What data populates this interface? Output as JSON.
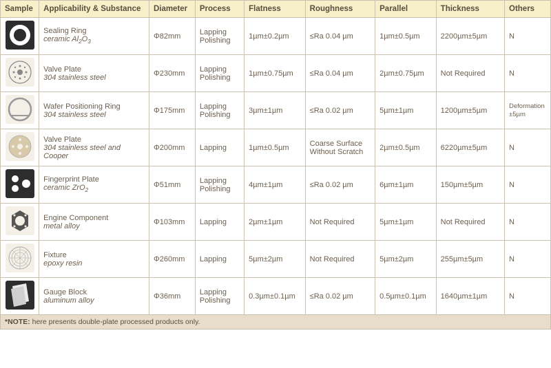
{
  "headers": {
    "sample": "Sample",
    "applicability": "Applicability & Substance",
    "diameter": "Diameter",
    "process": "Process",
    "flatness": "Flatness",
    "roughness": "Roughness",
    "parallel": "Parallel",
    "thickness": "Thickness",
    "others": "Others"
  },
  "colors": {
    "header_bg": "#f6efc8",
    "cell_bg": "#ffffff",
    "border": "#c9c0af",
    "note_bg": "#e7ddc9",
    "text": "#6b5f4f",
    "icon_bg_light": "#f4f0e7",
    "icon_bg_dark": "#2d2d2d"
  },
  "rows": [
    {
      "name": "Sealing Ring",
      "material": "ceramic Al₂O₃",
      "material_html": "ceramic Al<sub>2</sub>O<sub>3</sub>",
      "diameter": "Φ82mm",
      "process": "Lapping Polishing",
      "flatness": "1µm±0.2µm",
      "roughness": "≤Ra 0.04 µm",
      "parallel": "1µm±0.5µm",
      "thickness": "2200µm±5µm",
      "others": "N",
      "icon": "ring-white"
    },
    {
      "name": "Valve Plate",
      "material": "304 stainless steel",
      "diameter": "Φ230mm",
      "process": "Lapping Polishing",
      "flatness": "1µm±0.75µm",
      "roughness": "≤Ra 0.04 µm",
      "parallel": "2µm±0.75µm",
      "thickness": "Not Required",
      "others": "N",
      "icon": "valve-plate"
    },
    {
      "name": "Wafer Positioning Ring",
      "material": "304 stainless steel",
      "diameter": "Φ175mm",
      "process": "Lapping Polishing",
      "flatness": "3µm±1µm",
      "roughness": "≤Ra 0.02 µm",
      "parallel": "5µm±1µm",
      "thickness": "1200µm±5µm",
      "others": "Deformation ±5µm",
      "others_small": true,
      "icon": "wafer-ring"
    },
    {
      "name": "Valve Plate",
      "material": "304 stainless steel and Cooper",
      "diameter": "Φ200mm",
      "process": "Lapping",
      "flatness": "1µm±0.5µm",
      "roughness": "Coarse Surface Without Scratch",
      "parallel": "2µm±0.5µm",
      "thickness": "6220µm±5µm",
      "others": "N",
      "icon": "valve-cooper"
    },
    {
      "name": "Fingerprint Plate",
      "material": "ceramic ZrO₂",
      "material_html": "ceramic ZrO<sub>2</sub>",
      "diameter": "Φ51mm",
      "process": "Lapping Polishing",
      "flatness": "4µm±1µm",
      "roughness": "≤Ra 0.02 µm",
      "parallel": "6µm±1µm",
      "thickness": "150µm±5µm",
      "others": "N",
      "icon": "fingerprint"
    },
    {
      "name": "Engine Component",
      "material": "metal alloy",
      "diameter": "Φ103mm",
      "process": "Lapping",
      "flatness": "2µm±1µm",
      "roughness": "Not Required",
      "parallel": "5µm±1µm",
      "thickness": "Not Required",
      "others": "N",
      "icon": "engine-comp"
    },
    {
      "name": "Fixture",
      "material": "epoxy resin",
      "diameter": "Φ260mm",
      "process": "Lapping",
      "flatness": "5µm±2µm",
      "roughness": "Not Required",
      "parallel": "5µm±2µm",
      "thickness": "255µm±5µm",
      "others": "N",
      "icon": "fixture"
    },
    {
      "name": "Gauge Block",
      "material": "aluminum alloy",
      "diameter": "Φ36mm",
      "process": "Lapping Polishing",
      "flatness": "0.3µm±0.1µm",
      "roughness": "≤Ra 0.02 µm",
      "parallel": "0.5µm±0.1µm",
      "thickness": "1640µm±1µm",
      "others": "N",
      "icon": "gauge-block"
    }
  ],
  "note_label": "*NOTE:",
  "note_text": " here presents double-plate processed products only.",
  "icon_svgs": {
    "ring-white": "<svg viewBox='0 0 42 42'><rect width='42' height='42' fill='#2d2d2d' rx='3'/><circle cx='21' cy='21' r='15' fill='#fff'/><circle cx='21' cy='21' r='9' fill='#2d2d2d'/></svg>",
    "valve-plate": "<svg viewBox='0 0 42 42'><rect width='42' height='42' fill='#f4f0e7' rx='3'/><circle cx='21' cy='21' r='16' fill='none' stroke='#888' stroke-width='1.2'/><circle cx='21' cy='21' r='4' fill='#888'/><circle cx='12' cy='21' r='1.5' fill='#888'/><circle cx='30' cy='21' r='1.5' fill='#888'/><circle cx='21' cy='12' r='1.5' fill='#888'/><circle cx='21' cy='30' r='1.5' fill='#888'/><circle cx='14' cy='14' r='1.2' fill='#888'/><circle cx='28' cy='14' r='1.2' fill='#888'/><circle cx='14' cy='28' r='1.2' fill='#888'/><circle cx='28' cy='28' r='1.2' fill='#888'/></svg>",
    "wafer-ring": "<svg viewBox='0 0 42 42'><rect width='42' height='42' fill='#f4f0e7' rx='3'/><circle cx='21' cy='21' r='16' fill='none' stroke='#999' stroke-width='2.5'/><path d='M 8 30 L 34 30' stroke='#999' stroke-width='2' fill='none'/></svg>",
    "valve-cooper": "<svg viewBox='0 0 42 42'><rect width='42' height='42' fill='#f4f0e7' rx='3'/><circle cx='21' cy='21' r='16' fill='#d8c9a8' stroke='#aaa' stroke-width='0.8'/><circle cx='21' cy='21' r='4' fill='#f4f0e7'/><circle cx='11' cy='21' r='2' fill='#f4f0e7'/><circle cx='31' cy='21' r='2' fill='#f4f0e7'/><circle cx='21' cy='11' r='2' fill='#f4f0e7'/><circle cx='21' cy='31' r='2' fill='#f4f0e7'/></svg>",
    "fingerprint": "<svg viewBox='0 0 42 42'><rect width='42' height='42' fill='#2d2d2d' rx='3'/><circle cx='14' cy='14' r='5' fill='#fff'/><circle cx='14' cy='28' r='5' fill='#fff'/><circle cx='30' cy='21' r='6' fill='#fff'/></svg>",
    "engine-comp": "<svg viewBox='0 0 42 42'><rect width='42' height='42' fill='#f4f0e7' rx='3'/><path d='M 21 6 L 33 13 L 33 29 L 21 36 L 9 29 L 9 13 Z' fill='#555'/><circle cx='21' cy='21' r='7' fill='#f4f0e7'/><circle cx='13' cy='13' r='1.5' fill='#f4f0e7'/><circle cx='29' cy='13' r='1.5' fill='#f4f0e7'/><circle cx='13' cy='29' r='1.5' fill='#f4f0e7'/><circle cx='29' cy='29' r='1.5' fill='#f4f0e7'/></svg>",
    "fixture": "<svg viewBox='0 0 42 42'><rect width='42' height='42' fill='#f4f0e7' rx='3'/><circle cx='21' cy='21' r='16' fill='none' stroke='#aaa' stroke-width='1'/><circle cx='21' cy='21' r='12' fill='none' stroke='#aaa' stroke-width='0.6'/><circle cx='21' cy='21' r='8' fill='none' stroke='#aaa' stroke-width='0.6'/><line x1='21' y1='5' x2='21' y2='37' stroke='#aaa' stroke-width='0.6'/><line x1='5' y1='21' x2='37' y2='21' stroke='#aaa' stroke-width='0.6'/><line x1='10' y1='10' x2='32' y2='32' stroke='#aaa' stroke-width='0.5'/><line x1='32' y1='10' x2='10' y2='32' stroke='#aaa' stroke-width='0.5'/></svg>",
    "gauge-block": "<svg viewBox='0 0 42 42'><rect width='42' height='42' fill='#2d2d2d' rx='3'/><path d='M 10 8 L 30 4 L 34 30 L 14 35 Z' fill='#eaeaea'/><path d='M 8 12 L 26 8 L 30 34 L 12 38 Z' fill='#cfcfcf'/></svg>"
  }
}
